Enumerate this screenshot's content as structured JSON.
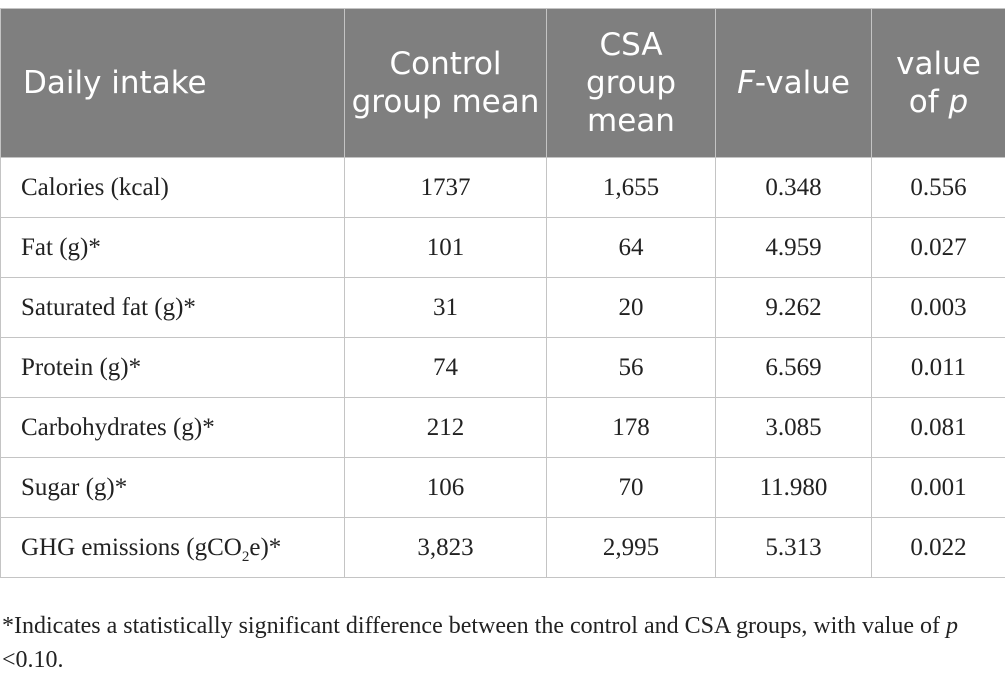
{
  "header": {
    "col1": "Daily intake",
    "col2": "Control group mean",
    "col3": "CSA group mean",
    "col4_italic": "F",
    "col4_rest": "-value",
    "col5_text": "value of ",
    "col5_italic": "p"
  },
  "rows": [
    {
      "label": "Calories (kcal)",
      "control": "1737",
      "csa": "1,655",
      "f": "0.348",
      "p": "0.556"
    },
    {
      "label": "Fat (g)*",
      "control": "101",
      "csa": "64",
      "f": "4.959",
      "p": "0.027"
    },
    {
      "label": "Saturated fat (g)*",
      "control": "31",
      "csa": "20",
      "f": "9.262",
      "p": "0.003"
    },
    {
      "label": "Protein (g)*",
      "control": "74",
      "csa": "56",
      "f": "6.569",
      "p": "0.011"
    },
    {
      "label": "Carbohydrates (g)*",
      "control": "212",
      "csa": "178",
      "f": "3.085",
      "p": "0.081"
    },
    {
      "label": "Sugar (g)*",
      "control": "106",
      "csa": "70",
      "f": "11.980",
      "p": "0.001"
    },
    {
      "label_pre": "GHG emissions (gCO",
      "label_sub": "2",
      "label_post": "e)*",
      "control": "3,823",
      "csa": "2,995",
      "f": "5.313",
      "p": "0.022"
    }
  ],
  "footnote": {
    "text": "*Indicates a statistically significant difference between the control and CSA groups, with value of ",
    "italic": "p",
    "tail": " <0.10."
  }
}
